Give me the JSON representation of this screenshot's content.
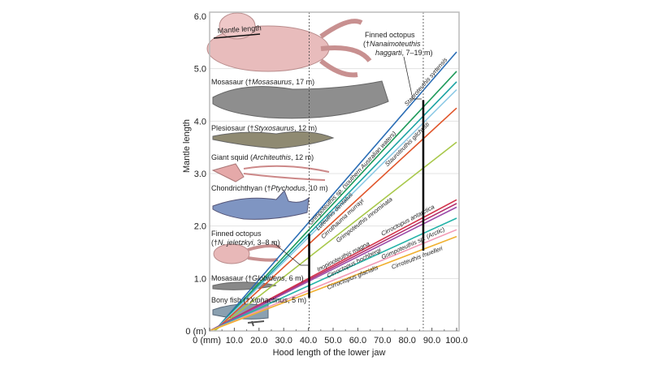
{
  "chart_data": {
    "type": "line",
    "xlabel": "Hood length of the lower jaw",
    "ylabel": "Mantle length",
    "xlim": [
      0,
      100
    ],
    "ylim": [
      0,
      6
    ],
    "x_ticks": [
      "0 (mm)",
      "10.0",
      "20.0",
      "30.0",
      "40.0",
      "50.0",
      "60.0",
      "70.0",
      "80.0",
      "90.0",
      "100.0"
    ],
    "x_tick_values": [
      0,
      10,
      20,
      30,
      40,
      50,
      60,
      70,
      80,
      90,
      100
    ],
    "y_ticks": [
      "0 (m)",
      "1.0",
      "2.0",
      "3.0",
      "4.0",
      "5.0",
      "6.0"
    ],
    "y_tick_values": [
      0,
      1,
      2,
      3,
      4,
      5,
      6
    ],
    "grid": "horizontal",
    "series": [
      {
        "name": "Stauroteuthis syrtensis",
        "color": "#2a6db5",
        "x": [
          2,
          100
        ],
        "y": [
          0,
          5.32
        ]
      },
      {
        "name": "Grimpoteuthis sp. (southern Australian waters)",
        "color": "#1e9a5a",
        "x": [
          2,
          100
        ],
        "y": [
          0,
          4.95
        ]
      },
      {
        "name": "Luteuthis dentatus",
        "color": "#1aa3a3",
        "x": [
          2,
          100
        ],
        "y": [
          0,
          4.75
        ]
      },
      {
        "name": "Stauroteuthis gilchristi",
        "color": "#8ecae6",
        "x": [
          2,
          100
        ],
        "y": [
          0,
          4.6
        ]
      },
      {
        "name": "Cirrothauma murrayi",
        "color": "#e0552a",
        "x": [
          2,
          100
        ],
        "y": [
          0,
          4.25
        ]
      },
      {
        "name": "Grimpoteuthis innominata",
        "color": "#a8c84a",
        "x": [
          2,
          100
        ],
        "y": [
          0,
          3.6
        ]
      },
      {
        "name": "Cirroctopus antarctica",
        "color": "#d2334a",
        "x": [
          0,
          100
        ],
        "y": [
          0,
          2.5
        ]
      },
      {
        "name": "Inopinoteuthis magna",
        "color": "#b5306e",
        "x": [
          0,
          100
        ],
        "y": [
          0,
          2.43
        ]
      },
      {
        "name": "Cirroctopus hochbergi",
        "color": "#9b4aa8",
        "x": [
          0,
          100
        ],
        "y": [
          0,
          2.36
        ]
      },
      {
        "name": "Grimpoteuthis sp. (Arctic)",
        "color": "#24b3a8",
        "x": [
          0,
          100
        ],
        "y": [
          0,
          2.15
        ]
      },
      {
        "name": "Cirroctopus glacialis",
        "color": "#f29ab5",
        "x": [
          0,
          100
        ],
        "y": [
          0,
          1.93
        ]
      },
      {
        "name": "Cirroteuthis muelleri",
        "color": "#f0b030",
        "x": [
          0,
          100
        ],
        "y": [
          0,
          1.8
        ]
      }
    ],
    "reference_lines": [
      {
        "x": 40.3,
        "style": "dashed"
      },
      {
        "x": 86.5,
        "style": "dashed"
      }
    ],
    "ranges": [
      {
        "x": 40.3,
        "y": [
          0.63,
          1.85
        ]
      },
      {
        "x": 86.5,
        "y": [
          1.53,
          4.4
        ]
      }
    ],
    "annotations": {
      "mantle_length": "Mantle length",
      "animals": [
        {
          "pre": "Mosasaur (†",
          "it": "Mosasaurus",
          "post": ", 17 m)"
        },
        {
          "pre": "Plesiosaur (†",
          "it": "Styxosaurus",
          "post": ", 12 m)"
        },
        {
          "pre": "Giant squid (",
          "it": "Architeuthis",
          "post": ", 12 m)"
        },
        {
          "pre": "Chondrichthyan (†",
          "it": "Ptychodus",
          "post": ", 10 m)"
        },
        {
          "pre": "Mosasaur (†",
          "it": "Globidens",
          "post": ", 6 m)"
        },
        {
          "pre": "Bony fish (†",
          "it": "Xiphactinus",
          "post": ", 5 m)"
        }
      ],
      "finned_small": {
        "line1": "Finned octopus",
        "pre": "(†",
        "it": "N. jeletzkyi",
        "post": ", 3–8 m)"
      },
      "finned_large": {
        "line1": "Finned octopus",
        "pre": "(†",
        "it2": "Nanaimoteuthis",
        "it3": "haggarti",
        "post": ", 7–19 m)"
      }
    }
  }
}
